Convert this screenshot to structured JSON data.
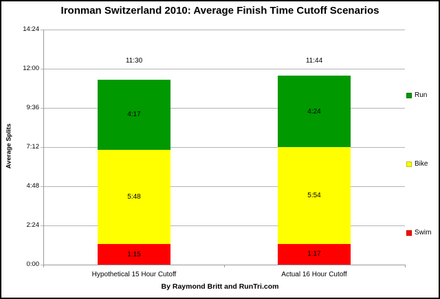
{
  "chart_data": {
    "type": "bar",
    "stacked": true,
    "title": "Ironman Switzerland 2010: Average Finish Time Cutoff Scenarios",
    "ylabel": "Average Splits",
    "xlabel": "",
    "footer": "By Raymond Britt and RunTri.com",
    "categories": [
      "Hypothetical 15 Hour Cutoff",
      "Actual 16 Hour Cutoff"
    ],
    "series": [
      {
        "name": "Swim",
        "color": "#ff0000",
        "labels": [
          "1:15",
          "1:17"
        ],
        "values_minutes": [
          75,
          77
        ]
      },
      {
        "name": "Bike",
        "color": "#ffff00",
        "labels": [
          "5:48",
          "5:54"
        ],
        "values_minutes": [
          348,
          354
        ]
      },
      {
        "name": "Run",
        "color": "#009900",
        "labels": [
          "4:17",
          "4:24"
        ],
        "values_minutes": [
          257,
          264
        ]
      }
    ],
    "totals": [
      "11:30",
      "11:44"
    ],
    "y_axis": {
      "ticks": [
        "0:00",
        "2:24",
        "4:48",
        "7:12",
        "9:36",
        "12:00",
        "14:24"
      ],
      "min_minutes": 0,
      "max_minutes": 864,
      "step_minutes": 144
    },
    "legend": {
      "position": "right",
      "entries": [
        {
          "label": "Run",
          "color": "#009900"
        },
        {
          "label": "Bike",
          "color": "#ffff00"
        },
        {
          "label": "Swim",
          "color": "#ff0000"
        }
      ]
    },
    "grid": true
  },
  "colors": {
    "gridline": "#b3b3b3",
    "axis": "#9a9a9a",
    "background": "#ffffff",
    "frame_border": "#000000",
    "text": "#000000"
  }
}
